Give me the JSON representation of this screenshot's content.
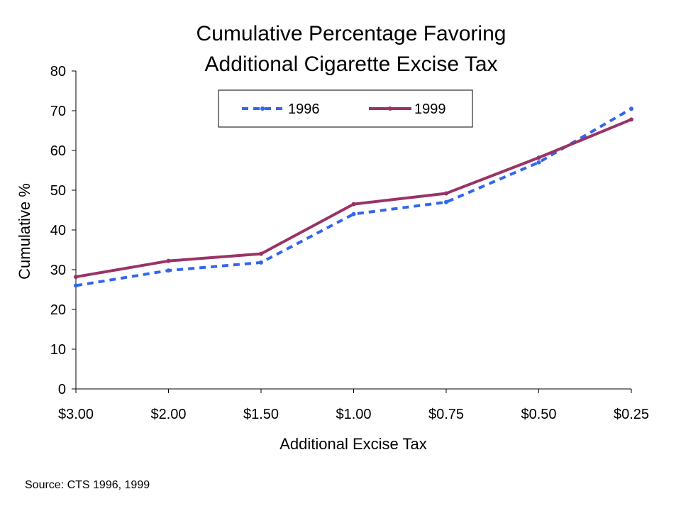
{
  "chart_data": {
    "type": "line",
    "title": [
      "Cumulative Percentage Favoring",
      "Additional Cigarette Excise Tax"
    ],
    "xlabel": "Additional Excise Tax",
    "ylabel": "Cumulative %",
    "categories": [
      "$3.00",
      "$2.00",
      "$1.50",
      "$1.00",
      "$0.75",
      "$0.50",
      "$0.25"
    ],
    "ylim": [
      0,
      80
    ],
    "yticks": [
      "0",
      "10",
      "20",
      "30",
      "40",
      "50",
      "60",
      "70",
      "80"
    ],
    "grid": false,
    "legend_position": "top",
    "series": [
      {
        "name": "1996",
        "color": "#3366ee",
        "style": "dashed",
        "values": [
          26,
          29.8,
          31.8,
          44,
          47,
          57,
          70.5
        ]
      },
      {
        "name": "1999",
        "color": "#993366",
        "style": "solid",
        "values": [
          28.2,
          32.2,
          34,
          46.5,
          49.2,
          58.2,
          67.8
        ]
      }
    ]
  },
  "source": "Source:  CTS 1996, 1999"
}
